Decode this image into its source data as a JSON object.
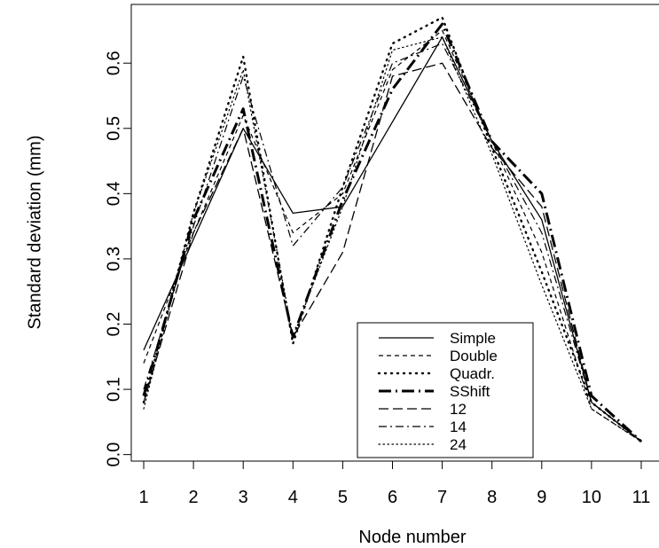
{
  "chart_data": {
    "type": "line",
    "xlabel": "Node number",
    "ylabel": "Standard deviation (mm)",
    "x": [
      1,
      2,
      3,
      4,
      5,
      6,
      7,
      8,
      9,
      10,
      11
    ],
    "xticks": [
      "1",
      "2",
      "3",
      "4",
      "5",
      "6",
      "7",
      "8",
      "9",
      "10",
      "11"
    ],
    "yticks": [
      "0.0",
      "0.1",
      "0.2",
      "0.3",
      "0.4",
      "0.5",
      "0.6"
    ],
    "ytick_values": [
      0.0,
      0.1,
      0.2,
      0.3,
      0.4,
      0.5,
      0.6
    ],
    "xlim": [
      0.75,
      11.25
    ],
    "ylim": [
      -0.01,
      0.69
    ],
    "grid": false,
    "legend_position": "bottom-right",
    "series": [
      {
        "name": "Simple",
        "style": "solid",
        "width": 1.3,
        "values": [
          0.16,
          0.33,
          0.5,
          0.37,
          0.38,
          0.51,
          0.64,
          0.48,
          0.36,
          0.08,
          0.02
        ]
      },
      {
        "name": "Double",
        "style": "dashed-short",
        "width": 1.2,
        "values": [
          0.14,
          0.34,
          0.52,
          0.34,
          0.4,
          0.59,
          0.65,
          0.48,
          0.31,
          0.07,
          0.02
        ]
      },
      {
        "name": "Quadr.",
        "style": "dotted-bold",
        "width": 2.4,
        "values": [
          0.08,
          0.37,
          0.61,
          0.17,
          0.41,
          0.63,
          0.67,
          0.47,
          0.28,
          0.08,
          0.02
        ]
      },
      {
        "name": "SShift",
        "style": "dashdot-bold",
        "width": 3.0,
        "values": [
          0.09,
          0.36,
          0.53,
          0.18,
          0.39,
          0.56,
          0.66,
          0.48,
          0.4,
          0.09,
          0.02
        ]
      },
      {
        "name": "12",
        "style": "dashed-long",
        "width": 1.3,
        "values": [
          0.08,
          0.34,
          0.5,
          0.18,
          0.31,
          0.58,
          0.6,
          0.47,
          0.38,
          0.08,
          0.02
        ]
      },
      {
        "name": "14",
        "style": "dashdot",
        "width": 1.2,
        "values": [
          0.1,
          0.35,
          0.58,
          0.32,
          0.41,
          0.6,
          0.63,
          0.48,
          0.34,
          0.08,
          0.02
        ]
      },
      {
        "name": "24",
        "style": "dotted",
        "width": 1.2,
        "values": [
          0.07,
          0.37,
          0.59,
          0.18,
          0.38,
          0.62,
          0.64,
          0.46,
          0.26,
          0.07,
          0.02
        ]
      }
    ]
  }
}
